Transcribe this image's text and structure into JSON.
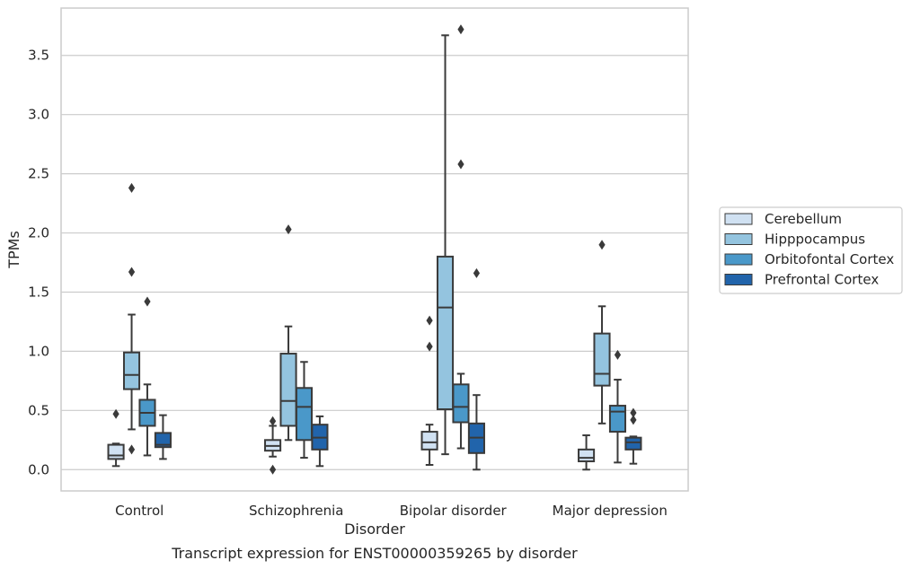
{
  "chart_data": {
    "type": "boxplot",
    "title": "Transcript expression for ENST00000359265 by disorder",
    "xlabel": "Disorder",
    "ylabel": "TPMs",
    "ylim": [
      -0.18,
      3.9
    ],
    "yticks": [
      0.0,
      0.5,
      1.0,
      1.5,
      2.0,
      2.5,
      3.0,
      3.5
    ],
    "ytick_labels": [
      "0.0",
      "0.5",
      "1.0",
      "1.5",
      "2.0",
      "2.5",
      "3.0",
      "3.5"
    ],
    "grid": "horizontal",
    "legend_position": "right",
    "categories": [
      "Control",
      "Schizophrenia",
      "Bipolar disorder",
      "Major depression"
    ],
    "series": [
      {
        "name": "Cerebellum",
        "color": "#d0e1f2",
        "boxes": [
          {
            "whislo": 0.03,
            "q1": 0.09,
            "med": 0.12,
            "q3": 0.21,
            "whishi": 0.22,
            "fliers": [
              0.47
            ]
          },
          {
            "whislo": 0.11,
            "q1": 0.16,
            "med": 0.2,
            "q3": 0.25,
            "whishi": 0.37,
            "fliers": [
              0.0,
              0.41
            ]
          },
          {
            "whislo": 0.04,
            "q1": 0.17,
            "med": 0.23,
            "q3": 0.32,
            "whishi": 0.38,
            "fliers": [
              1.04,
              1.26
            ]
          },
          {
            "whislo": 0.0,
            "q1": 0.07,
            "med": 0.1,
            "q3": 0.17,
            "whishi": 0.29,
            "fliers": []
          }
        ]
      },
      {
        "name": "Hipppocampus",
        "color": "#94c4df",
        "boxes": [
          {
            "whislo": 0.34,
            "q1": 0.68,
            "med": 0.8,
            "q3": 0.99,
            "whishi": 1.31,
            "fliers": [
              0.17,
              1.67,
              2.38
            ]
          },
          {
            "whislo": 0.25,
            "q1": 0.37,
            "med": 0.58,
            "q3": 0.98,
            "whishi": 1.21,
            "fliers": [
              2.03
            ]
          },
          {
            "whislo": 0.13,
            "q1": 0.51,
            "med": 1.37,
            "q3": 1.8,
            "whishi": 3.67,
            "fliers": []
          },
          {
            "whislo": 0.39,
            "q1": 0.71,
            "med": 0.81,
            "q3": 1.15,
            "whishi": 1.38,
            "fliers": [
              1.9
            ]
          }
        ]
      },
      {
        "name": "Orbitofontal Cortex",
        "color": "#4a98c9",
        "boxes": [
          {
            "whislo": 0.12,
            "q1": 0.37,
            "med": 0.48,
            "q3": 0.59,
            "whishi": 0.72,
            "fliers": [
              1.42
            ]
          },
          {
            "whislo": 0.1,
            "q1": 0.25,
            "med": 0.53,
            "q3": 0.69,
            "whishi": 0.91,
            "fliers": []
          },
          {
            "whislo": 0.18,
            "q1": 0.4,
            "med": 0.53,
            "q3": 0.72,
            "whishi": 0.81,
            "fliers": [
              2.58,
              3.72
            ]
          },
          {
            "whislo": 0.06,
            "q1": 0.32,
            "med": 0.49,
            "q3": 0.54,
            "whishi": 0.76,
            "fliers": [
              0.97
            ]
          }
        ]
      },
      {
        "name": "Prefrontal Cortex",
        "color": "#2164ab",
        "boxes": [
          {
            "whislo": 0.09,
            "q1": 0.19,
            "med": 0.21,
            "q3": 0.31,
            "whishi": 0.46,
            "fliers": []
          },
          {
            "whislo": 0.03,
            "q1": 0.17,
            "med": 0.27,
            "q3": 0.38,
            "whishi": 0.45,
            "fliers": []
          },
          {
            "whislo": 0.0,
            "q1": 0.14,
            "med": 0.27,
            "q3": 0.39,
            "whishi": 0.63,
            "fliers": [
              1.66
            ]
          },
          {
            "whislo": 0.05,
            "q1": 0.17,
            "med": 0.23,
            "q3": 0.27,
            "whishi": 0.28,
            "fliers": [
              0.42,
              0.48
            ]
          }
        ]
      }
    ]
  }
}
